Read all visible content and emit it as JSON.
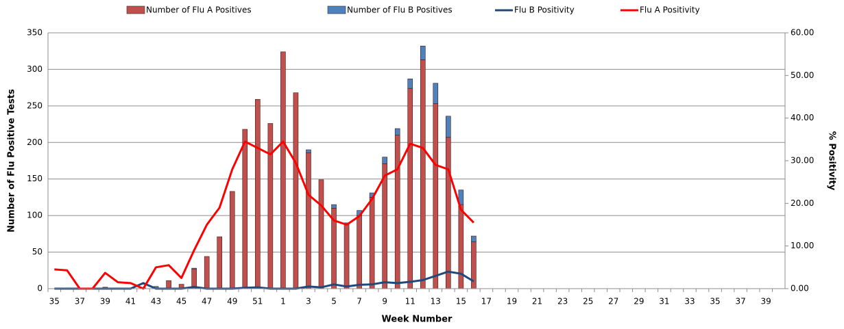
{
  "chart_data": {
    "type": "bar",
    "x_label": "Week Number",
    "y_label": "Number of Flu Positive Tests",
    "y2_label": "% Positivity",
    "categories": [
      "35",
      null,
      "37",
      null,
      "39",
      null,
      "41",
      null,
      "43",
      null,
      "45",
      null,
      "47",
      null,
      "49",
      null,
      "51",
      null,
      "1",
      null,
      "3",
      null,
      "5",
      null,
      "7",
      null,
      "9",
      null,
      "11",
      null,
      "13",
      null,
      "15",
      null,
      "17",
      null,
      "19",
      null,
      "21",
      null,
      "23",
      null,
      "25",
      null,
      "27",
      null,
      "29",
      null,
      "31",
      null,
      "33",
      null,
      "35",
      null,
      "37",
      null,
      "39",
      null
    ],
    "series": [
      {
        "name": "Number of Flu A Positives",
        "type": "bar",
        "color": "#c0504d",
        "values": [
          0,
          0,
          0,
          0,
          2,
          0,
          0,
          0,
          1,
          11,
          6,
          27,
          44,
          71,
          133,
          218,
          259,
          226,
          324,
          268,
          186,
          149,
          110,
          88,
          100,
          125,
          171,
          210,
          274,
          313,
          253,
          207,
          115,
          64,
          null,
          null,
          null,
          null,
          null,
          null,
          null,
          null,
          null,
          null,
          null,
          null,
          null,
          null,
          null,
          null,
          null,
          null,
          null,
          null,
          null,
          null,
          null,
          null
        ]
      },
      {
        "name": "Number of Flu B Positives",
        "type": "bar",
        "color": "#4f81bd",
        "values": [
          0,
          0,
          0,
          0,
          0,
          0,
          0,
          1,
          2,
          0,
          0,
          1,
          0,
          0,
          0,
          0,
          0,
          0,
          0,
          0,
          4,
          0,
          5,
          2,
          7,
          6,
          9,
          9,
          13,
          19,
          28,
          29,
          20,
          8,
          null,
          null,
          null,
          null,
          null,
          null,
          null,
          null,
          null,
          null,
          null,
          null,
          null,
          null,
          null,
          null,
          null,
          null,
          null,
          null,
          null,
          null,
          null,
          null
        ]
      },
      {
        "name": "Flu B Positivity",
        "type": "line",
        "axis": "y2",
        "color": "#1f497d",
        "values": [
          0,
          0,
          0,
          0,
          0,
          0,
          0,
          1.3,
          0,
          0,
          0,
          0.4,
          0,
          0,
          0,
          0.2,
          0.3,
          0,
          0,
          0,
          0.5,
          0.3,
          1,
          0.5,
          0.9,
          1,
          1.5,
          1.3,
          1.6,
          2,
          3,
          4,
          3.5,
          1.7,
          null,
          null,
          null,
          null,
          null,
          null,
          null,
          null,
          null,
          null,
          null,
          null,
          null,
          null,
          null,
          null,
          null,
          null,
          null,
          null,
          null,
          null,
          null,
          null
        ]
      },
      {
        "name": "Flu A Positivity",
        "type": "line",
        "axis": "y2",
        "color": "#ff0000",
        "values": [
          4.5,
          4.3,
          0,
          0,
          3.7,
          1.5,
          1.3,
          0,
          5,
          5.5,
          2.5,
          9,
          15,
          19,
          28,
          34.5,
          33,
          31.5,
          34.5,
          29.5,
          22,
          19.5,
          16,
          15,
          17,
          21,
          26.5,
          28,
          34,
          33,
          29,
          28,
          18.5,
          15.5,
          null,
          null,
          null,
          null,
          null,
          null,
          null,
          null,
          null,
          null,
          null,
          null,
          null,
          null,
          null,
          null,
          null,
          null,
          null,
          null,
          null,
          null,
          null,
          null
        ]
      }
    ],
    "ylim": [
      0,
      350
    ],
    "yticks": [
      0,
      50,
      100,
      150,
      200,
      250,
      300,
      350
    ],
    "y2lim": [
      0,
      60
    ],
    "y2ticks": [
      {
        "value": 0,
        "label": "0.00"
      },
      {
        "value": 10,
        "label": "10.00"
      },
      {
        "value": 20,
        "label": "20.00"
      },
      {
        "value": 30,
        "label": "30.00"
      },
      {
        "value": 40,
        "label": "40.00"
      },
      {
        "value": 50,
        "label": "50.00"
      },
      {
        "value": 60,
        "label": "60.00"
      }
    ],
    "grid": true,
    "legend": "top"
  }
}
